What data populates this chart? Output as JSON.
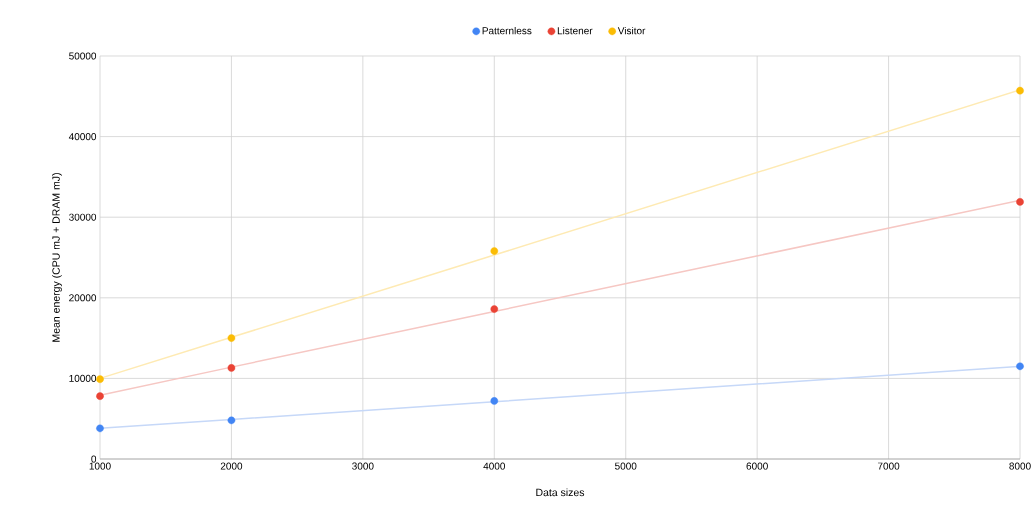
{
  "chart_data": {
    "type": "scatter",
    "xlabel": "Data sizes",
    "ylabel": "Mean energy  (CPU mJ + DRAM mJ)",
    "x": [
      1000,
      2000,
      4000,
      8000
    ],
    "series": [
      {
        "name": "Patternless",
        "marker": "circle",
        "color": "#4285f4",
        "values": [
          3800,
          4800,
          7200,
          11500
        ]
      },
      {
        "name": "Listener",
        "marker": "circle",
        "color": "#ea4335",
        "values": [
          7800,
          11300,
          18600,
          31900
        ]
      },
      {
        "name": "Visitor",
        "marker": "circle",
        "color": "#fbbc04",
        "values": [
          9900,
          15000,
          25800,
          45700
        ]
      },
      {
        "type": "line",
        "marker": "none",
        "color": "#c6d8f8",
        "values": [
          3800,
          4900,
          7100,
          11500
        ]
      },
      {
        "type": "line",
        "marker": "none",
        "color": "#f6c7c3",
        "values": [
          7900,
          11400,
          18300,
          32100
        ]
      },
      {
        "type": "line",
        "marker": "none",
        "color": "#feeab3",
        "values": [
          10000,
          15100,
          25300,
          45800
        ]
      }
    ],
    "xlim": [
      1000,
      8000
    ],
    "xticks": [
      1000,
      2000,
      3000,
      4000,
      5000,
      6000,
      7000,
      8000
    ],
    "ylim": [
      0,
      50000
    ],
    "yticks": [
      0,
      10000,
      20000,
      30000,
      40000,
      50000
    ],
    "grid": true,
    "legend": "top"
  }
}
